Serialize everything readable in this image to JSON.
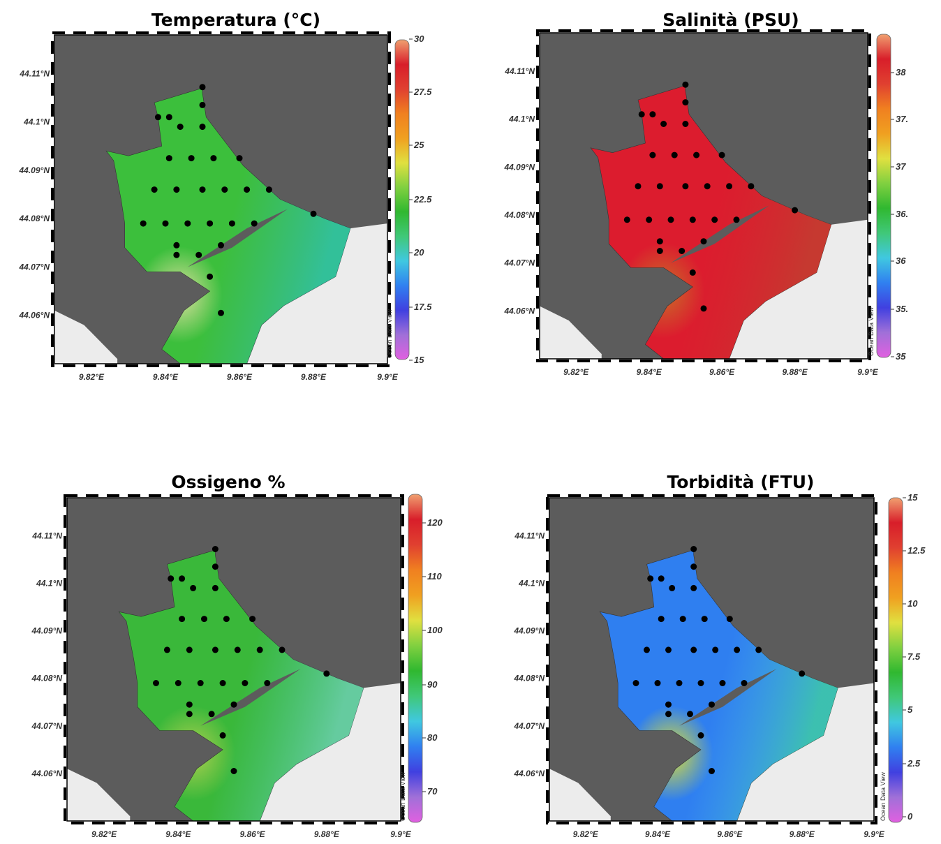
{
  "watermark": "Ocean Data View",
  "colors": {
    "land": "#5c5c5c",
    "no_data": "#ececec",
    "station": "#000000"
  },
  "lon_ticks": [
    "9.82°E",
    "9.84°E",
    "9.86°E",
    "9.88°E",
    "9.9°E"
  ],
  "lat_ticks": [
    "44.11°N",
    "44.1°N",
    "44.09°N",
    "44.08°N",
    "44.07°N",
    "44.06°N"
  ],
  "colormap": [
    "#e060e0",
    "#a070d8",
    "#4040e0",
    "#3080f0",
    "#40c8e0",
    "#40c878",
    "#30b830",
    "#80d040",
    "#e0e040",
    "#f0a020",
    "#f08020",
    "#e04030",
    "#d81e2a",
    "#f0a070"
  ],
  "panels": [
    {
      "title": "Temperatura (°C)",
      "colorbar_labels": [
        "30",
        "27.5",
        "25",
        "22.5",
        "20",
        "17.5",
        "15"
      ],
      "range": [
        15,
        30
      ],
      "fill": {
        "base": "#3cbf3c",
        "accents": [
          "#3ab8a0",
          "#30c0b0",
          "#e0e0a0"
        ]
      }
    },
    {
      "title": "Salinità (PSU)",
      "colorbar_labels": [
        "38",
        "37.",
        "37",
        "36.",
        "36",
        "35.",
        "35"
      ],
      "range": [
        35,
        38.5
      ],
      "fill": {
        "base": "#dc1c2e",
        "accents": [
          "#cc3030",
          "#c04030",
          "#c87028"
        ]
      }
    },
    {
      "title": "Ossigeno %",
      "colorbar_labels": [
        "120",
        "110",
        "100",
        "90",
        "80",
        "70"
      ],
      "range": [
        65,
        125
      ],
      "fill": {
        "base": "#3ab83a",
        "accents": [
          "#50c8a8",
          "#70d0b8",
          "#b0d050"
        ]
      }
    },
    {
      "title": "Torbidità (FTU)",
      "colorbar_labels": [
        "15",
        "12.5",
        "10",
        "7.5",
        "5",
        "2.5",
        "0"
      ],
      "range": [
        0,
        15
      ],
      "fill": {
        "base": "#2f7ff0",
        "accents": [
          "#50c0e8",
          "#40d0a0",
          "#e0e030"
        ]
      }
    }
  ]
}
